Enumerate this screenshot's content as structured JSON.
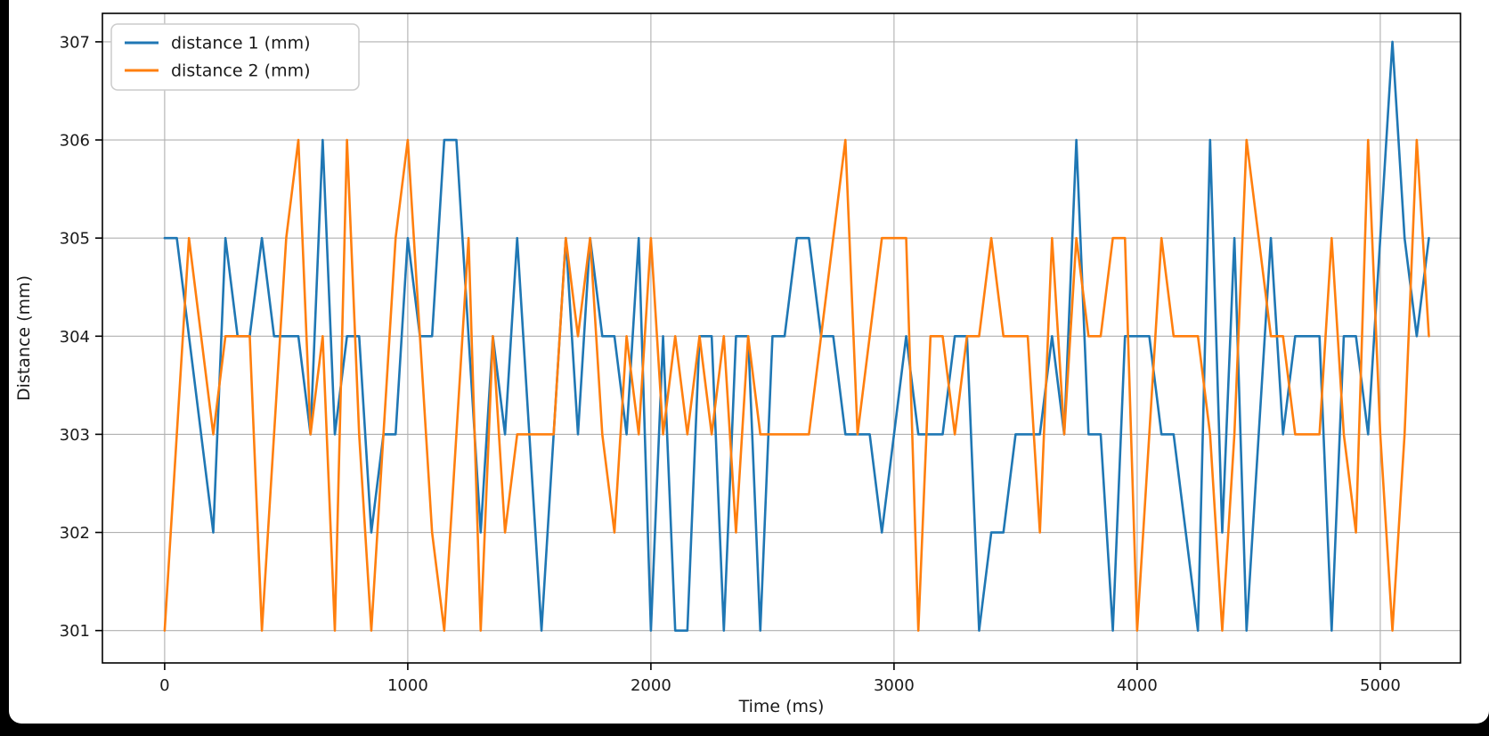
{
  "chart_data": {
    "type": "line",
    "title": "",
    "xlabel": "Time (ms)",
    "ylabel": "Distance (mm)",
    "x_start": 0,
    "x_step": 50,
    "x_end": 5200,
    "xlim": [
      -256,
      5330
    ],
    "ylim": [
      300.67,
      307.29
    ],
    "xticks": [
      0,
      1000,
      2000,
      3000,
      4000,
      5000
    ],
    "yticks": [
      301,
      302,
      303,
      304,
      305,
      306,
      307
    ],
    "grid": true,
    "legend_position": "upper-left",
    "series": [
      {
        "name": "distance 1 (mm)",
        "color": "#1f77b4",
        "values": [
          305,
          305,
          304,
          303,
          302,
          305,
          304,
          304,
          305,
          304,
          304,
          304,
          303,
          306,
          303,
          304,
          304,
          302,
          303,
          303,
          305,
          304,
          304,
          306,
          306,
          304,
          302,
          304,
          303,
          305,
          303,
          301,
          303,
          305,
          303,
          305,
          304,
          304,
          303,
          305,
          301,
          304,
          301,
          301,
          304,
          304,
          301,
          304,
          304,
          301,
          304,
          304,
          305,
          305,
          304,
          304,
          303,
          303,
          303,
          302,
          303,
          304,
          303,
          303,
          303,
          304,
          304,
          301,
          302,
          302,
          303,
          303,
          303,
          304,
          303,
          306,
          303,
          303,
          301,
          304,
          304,
          304,
          303,
          303,
          302,
          301,
          306,
          302,
          305,
          301,
          303,
          305,
          303,
          304,
          304,
          304,
          301,
          304,
          304,
          303,
          305,
          307,
          305,
          304,
          305
        ]
      },
      {
        "name": "distance 2 (mm)",
        "color": "#ff7f0e",
        "values": [
          301,
          303,
          305,
          304,
          303,
          304,
          304,
          304,
          301,
          303,
          305,
          306,
          303,
          304,
          301,
          306,
          303,
          301,
          303,
          305,
          306,
          304,
          302,
          301,
          303,
          305,
          301,
          304,
          302,
          303,
          303,
          303,
          303,
          305,
          304,
          305,
          303,
          302,
          304,
          303,
          305,
          303,
          304,
          303,
          304,
          303,
          304,
          302,
          304,
          303,
          303,
          303,
          303,
          303,
          304,
          305,
          306,
          303,
          304,
          305,
          305,
          305,
          301,
          304,
          304,
          303,
          304,
          304,
          305,
          304,
          304,
          304,
          302,
          305,
          303,
          305,
          304,
          304,
          305,
          305,
          301,
          303,
          305,
          304,
          304,
          304,
          303,
          301,
          303,
          306,
          305,
          304,
          304,
          303,
          303,
          303,
          305,
          303,
          302,
          306,
          303,
          301,
          303,
          306,
          304
        ]
      }
    ]
  },
  "style": {
    "page_bg": "#000000",
    "figure_bg": "#ffffff",
    "grid_color": "#b0b0b0",
    "spine_color": "#000000",
    "text_color": "#1a1a1a",
    "legend_border": "#cccccc"
  }
}
